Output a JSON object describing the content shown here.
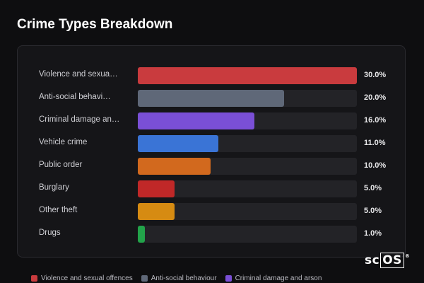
{
  "title": "Crime Types Breakdown",
  "chart_data": {
    "type": "bar",
    "orientation": "horizontal",
    "title": "Crime Types Breakdown",
    "categories": [
      "Violence and sexua…",
      "Anti-social behavi…",
      "Criminal damage an…",
      "Vehicle crime",
      "Public order",
      "Burglary",
      "Other theft",
      "Drugs"
    ],
    "values": [
      30.0,
      20.0,
      16.0,
      11.0,
      10.0,
      5.0,
      5.0,
      1.0
    ],
    "value_labels": [
      "30.0%",
      "20.0%",
      "16.0%",
      "11.0%",
      "10.0%",
      "5.0%",
      "5.0%",
      "1.0%"
    ],
    "colors": [
      "#c93b3e",
      "#5f6878",
      "#7a4fd6",
      "#3a74d6",
      "#d2691e",
      "#c02828",
      "#d68b12",
      "#22a34a"
    ],
    "xlim": [
      0,
      30
    ]
  },
  "legend": [
    {
      "label": "Violence and sexual offences",
      "color": "#c93b3e"
    },
    {
      "label": "Anti-social behaviour",
      "color": "#5f6878"
    },
    {
      "label": "Criminal damage and arson",
      "color": "#7a4fd6"
    }
  ],
  "logo": {
    "prefix": "sc",
    "boxed": "OS",
    "mark": "®"
  }
}
